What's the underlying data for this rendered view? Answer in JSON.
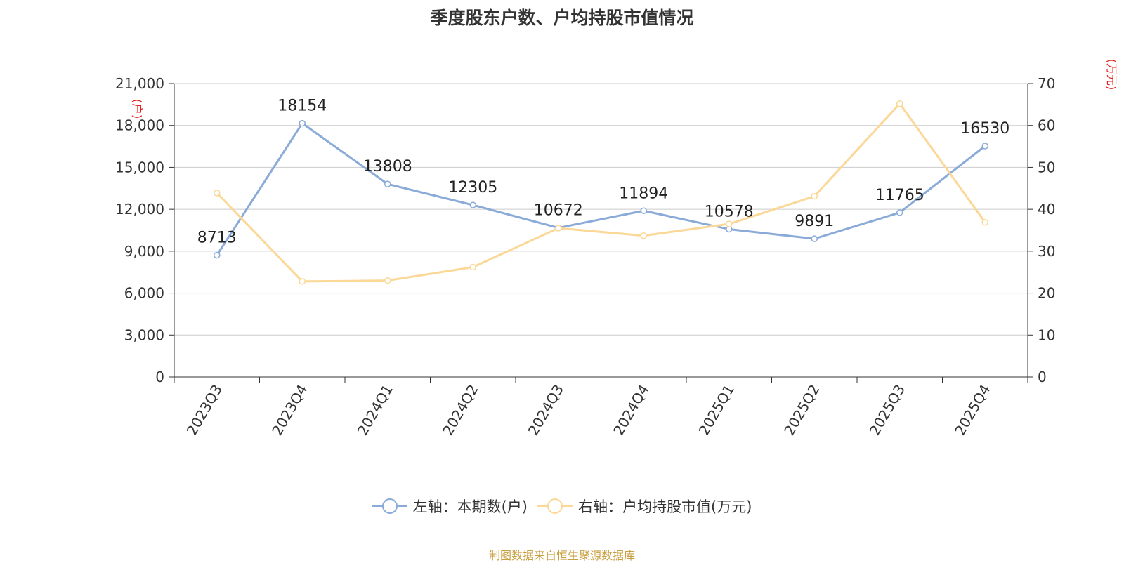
{
  "title": "季度股东户数、户均持股市值情况",
  "source": "制图数据来自恒生聚源数据库",
  "colors": {
    "left": "#8aaad8",
    "right": "#fbd898",
    "unit": "#e0201a",
    "grid": "#cccccc"
  },
  "chart_data": {
    "type": "line",
    "categories": [
      "2023Q3",
      "2023Q4",
      "2024Q1",
      "2024Q2",
      "2024Q3",
      "2024Q4",
      "2025Q1",
      "2025Q2",
      "2025Q3",
      "2025Q4"
    ],
    "left_axis": {
      "unit": "(户)",
      "ylim": [
        0,
        21000
      ],
      "ticks": [
        "0",
        "3,000",
        "6,000",
        "9,000",
        "12,000",
        "15,000",
        "18,000",
        "21,000"
      ]
    },
    "right_axis": {
      "unit": "(万元)",
      "ylim": [
        0,
        70
      ],
      "ticks": [
        "0",
        "10",
        "20",
        "30",
        "40",
        "50",
        "60",
        "70"
      ]
    },
    "series": [
      {
        "name": "左轴：本期数(户)",
        "axis": "left",
        "values": [
          8713,
          18154,
          13808,
          12305,
          10672,
          11894,
          10578,
          9891,
          11765,
          16530
        ],
        "labels": [
          "8713",
          "18154",
          "13808",
          "12305",
          "10672",
          "11894",
          "10578",
          "9891",
          "11765",
          "16530"
        ]
      },
      {
        "name": "右轴：户均持股市值(万元)",
        "axis": "right",
        "values": [
          43.9,
          22.8,
          23.0,
          26.2,
          35.5,
          33.7,
          36.5,
          43.1,
          65.2,
          36.9
        ]
      }
    ],
    "grid": true,
    "legend_position": "bottom"
  }
}
